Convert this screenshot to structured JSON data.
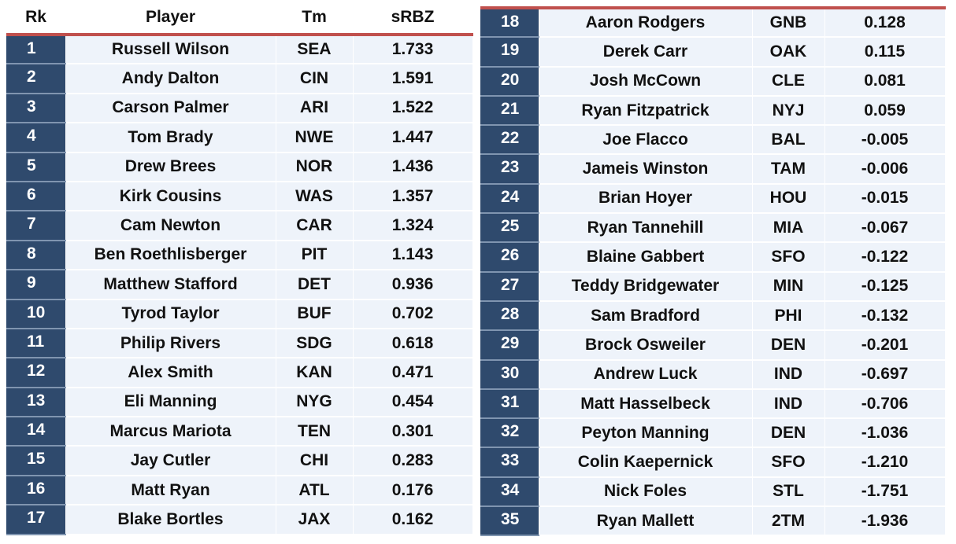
{
  "left_table": {
    "header": [
      "Rk",
      "Player",
      "Tm",
      "sRBZ"
    ],
    "rows": [
      [
        "1",
        "Russell Wilson",
        "SEA",
        "1.733"
      ],
      [
        "2",
        "Andy Dalton",
        "CIN",
        "1.591"
      ],
      [
        "3",
        "Carson Palmer",
        "ARI",
        "1.522"
      ],
      [
        "4",
        "Tom Brady",
        "NWE",
        "1.447"
      ],
      [
        "5",
        "Drew Brees",
        "NOR",
        "1.436"
      ],
      [
        "6",
        "Kirk Cousins",
        "WAS",
        "1.357"
      ],
      [
        "7",
        "Cam Newton",
        "CAR",
        "1.324"
      ],
      [
        "8",
        "Ben Roethlisberger",
        "PIT",
        "1.143"
      ],
      [
        "9",
        "Matthew Stafford",
        "DET",
        "0.936"
      ],
      [
        "10",
        "Tyrod Taylor",
        "BUF",
        "0.702"
      ],
      [
        "11",
        "Philip Rivers",
        "SDG",
        "0.618"
      ],
      [
        "12",
        "Alex Smith",
        "KAN",
        "0.471"
      ],
      [
        "13",
        "Eli Manning",
        "NYG",
        "0.454"
      ],
      [
        "14",
        "Marcus Mariota",
        "TEN",
        "0.301"
      ],
      [
        "15",
        "Jay Cutler",
        "CHI",
        "0.283"
      ],
      [
        "16",
        "Matt Ryan",
        "ATL",
        "0.176"
      ],
      [
        "17",
        "Blake Bortles",
        "JAX",
        "0.162"
      ]
    ]
  },
  "right_table": {
    "rows": [
      [
        "18",
        "Aaron Rodgers",
        "GNB",
        "0.128"
      ],
      [
        "19",
        "Derek Carr",
        "OAK",
        "0.115"
      ],
      [
        "20",
        "Josh McCown",
        "CLE",
        "0.081"
      ],
      [
        "21",
        "Ryan Fitzpatrick",
        "NYJ",
        "0.059"
      ],
      [
        "22",
        "Joe Flacco",
        "BAL",
        "-0.005"
      ],
      [
        "23",
        "Jameis Winston",
        "TAM",
        "-0.006"
      ],
      [
        "24",
        "Brian Hoyer",
        "HOU",
        "-0.015"
      ],
      [
        "25",
        "Ryan Tannehill",
        "MIA",
        "-0.067"
      ],
      [
        "26",
        "Blaine Gabbert",
        "SFO",
        "-0.122"
      ],
      [
        "27",
        "Teddy Bridgewater",
        "MIN",
        "-0.125"
      ],
      [
        "28",
        "Sam Bradford",
        "PHI",
        "-0.132"
      ],
      [
        "29",
        "Brock Osweiler",
        "DEN",
        "-0.201"
      ],
      [
        "30",
        "Andrew Luck",
        "IND",
        "-0.697"
      ],
      [
        "31",
        "Matt Hasselbeck",
        "IND",
        "-0.706"
      ],
      [
        "32",
        "Peyton Manning",
        "DEN",
        "-1.036"
      ],
      [
        "33",
        "Colin Kaepernick",
        "SFO",
        "-1.210"
      ],
      [
        "34",
        "Nick Foles",
        "STL",
        "-1.751"
      ],
      [
        "35",
        "Ryan Mallett",
        "2TM",
        "-1.936"
      ]
    ]
  }
}
